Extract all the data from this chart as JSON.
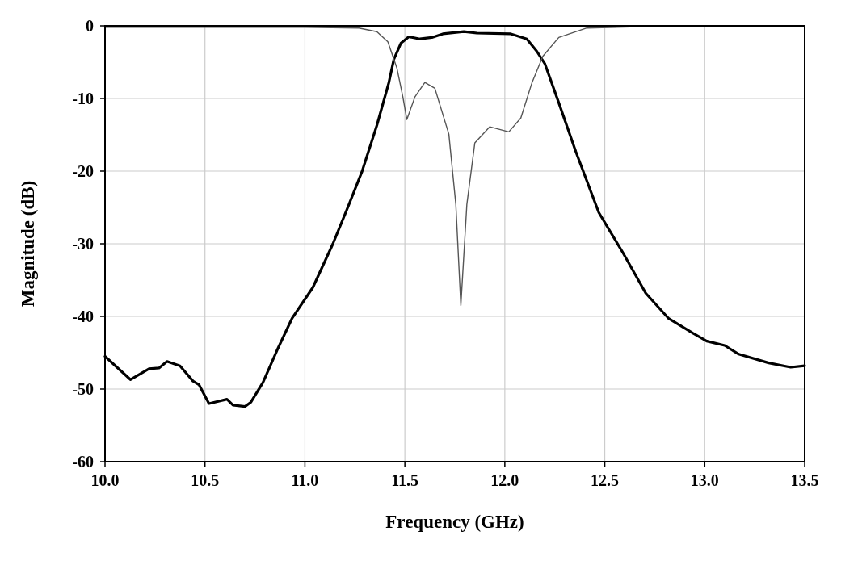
{
  "chart_data": {
    "type": "line",
    "xlabel": "Frequency (GHz)",
    "ylabel": "Magnitude (dB)",
    "xlim": [
      10,
      13.5
    ],
    "ylim": [
      -60,
      0
    ],
    "xticks": [
      {
        "value": 10,
        "label": "10.0"
      },
      {
        "value": 10.5,
        "label": "10.5"
      },
      {
        "value": 11,
        "label": "11.0"
      },
      {
        "value": 11.5,
        "label": "11.5"
      },
      {
        "value": 12,
        "label": "12.0"
      },
      {
        "value": 12.5,
        "label": "12.5"
      },
      {
        "value": 13,
        "label": "13.0"
      },
      {
        "value": 13.5,
        "label": "13.5"
      }
    ],
    "yticks": [
      -60,
      -50,
      -40,
      -30,
      -20,
      -10,
      0
    ],
    "grid": true,
    "line_style": "solid",
    "series": [
      {
        "color": "#000000",
        "x": [
          10,
          10.127,
          10.22,
          10.27,
          10.31,
          10.375,
          10.44,
          10.47,
          10.52,
          10.61,
          10.64,
          10.7,
          10.73,
          10.79,
          10.86,
          10.935,
          11.04,
          11.14,
          11.21,
          11.285,
          11.36,
          11.42,
          11.445,
          11.48,
          11.52,
          11.575,
          11.635,
          11.69,
          11.795,
          11.86,
          12.03,
          12.11,
          12.16,
          12.2,
          12.27,
          12.355,
          12.47,
          12.59,
          12.705,
          12.82,
          12.94,
          13.01,
          13.1,
          13.17,
          13.32,
          13.43,
          13.5
        ],
        "values": [
          -45.5,
          -48.7,
          -47.2,
          -47.1,
          -46.2,
          -46.8,
          -48.9,
          -49.4,
          -52,
          -51.4,
          -52.2,
          -52.4,
          -51.8,
          -49.1,
          -44.7,
          -40.3,
          -36,
          -30,
          -25.3,
          -20.1,
          -13.7,
          -7.8,
          -4.6,
          -2.4,
          -1.5,
          -1.8,
          -1.6,
          -1.1,
          -0.8,
          -1,
          -1.1,
          -1.8,
          -3.5,
          -5.2,
          -10.6,
          -17.3,
          -25.7,
          -31.2,
          -36.8,
          -40.3,
          -42.3,
          -43.4,
          -44,
          -45.2,
          -46.4,
          -47,
          -46.8
        ]
      },
      {
        "color": "#555555",
        "x": [
          10,
          10.5,
          11,
          11.27,
          11.36,
          11.415,
          11.46,
          11.49,
          11.51,
          11.55,
          11.6,
          11.65,
          11.72,
          11.755,
          11.78,
          11.81,
          11.85,
          11.925,
          12.02,
          12.08,
          12.135,
          12.19,
          12.27,
          12.41,
          12.7,
          13.1,
          13.5
        ],
        "values": [
          -0.2,
          -0.2,
          -0.2,
          -0.3,
          -0.8,
          -2.2,
          -5.8,
          -9.8,
          -12.9,
          -9.8,
          -7.8,
          -8.6,
          -14.9,
          -24.6,
          -38.5,
          -24.6,
          -16.1,
          -13.9,
          -14.6,
          -12.7,
          -7.9,
          -4.2,
          -1.6,
          -0.3,
          -0.1,
          0,
          0
        ]
      }
    ]
  }
}
